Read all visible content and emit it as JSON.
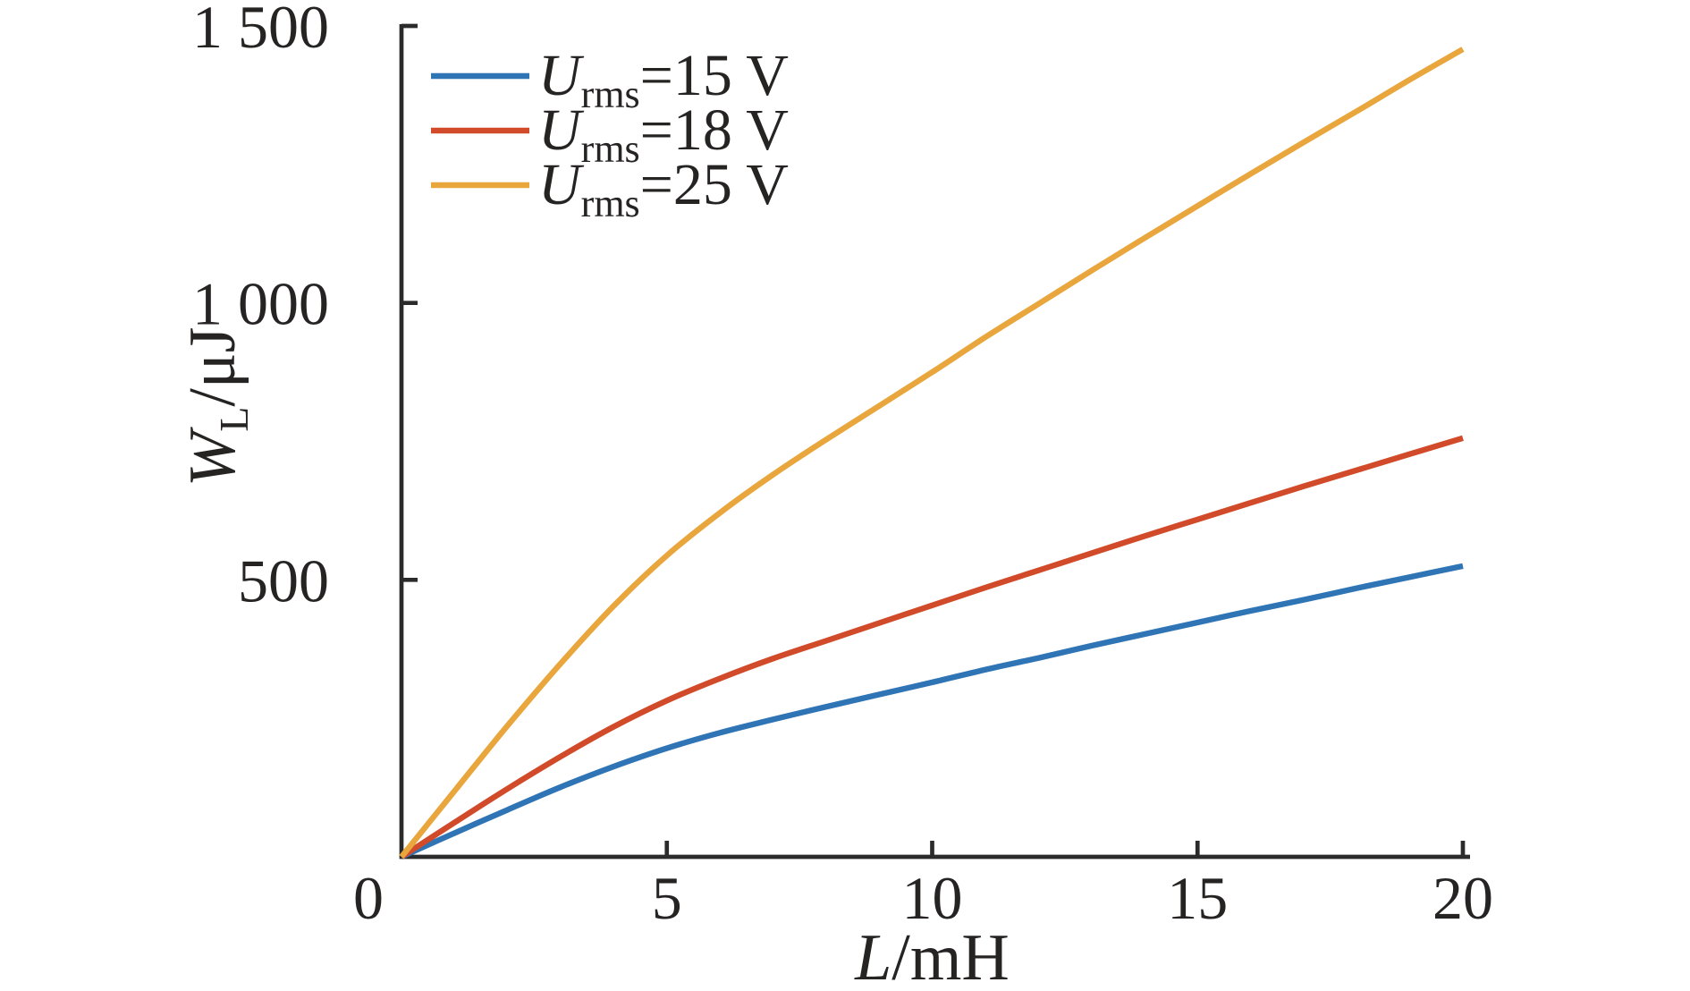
{
  "chart_data": {
    "type": "line",
    "title": "",
    "xlabel": {
      "var": "L",
      "rest": "/mH"
    },
    "ylabel": {
      "var": "W",
      "sub": "L",
      "rest": "/μJ"
    },
    "xlim": [
      0,
      20
    ],
    "ylim": [
      0,
      1500
    ],
    "x_ticks": [
      {
        "v": 0,
        "label": "0"
      },
      {
        "v": 5,
        "label": "5"
      },
      {
        "v": 10,
        "label": "10"
      },
      {
        "v": 15,
        "label": "15"
      },
      {
        "v": 20,
        "label": "20"
      }
    ],
    "y_ticks": [
      {
        "v": 500,
        "label": "500"
      },
      {
        "v": 1000,
        "label": "1 000"
      },
      {
        "v": 1500,
        "label": "1 500"
      }
    ],
    "grid": false,
    "legend_position": "inside-top-left",
    "x": [
      0,
      1,
      2,
      3,
      4,
      5,
      6,
      7,
      8,
      9,
      10,
      11,
      12,
      13,
      14,
      15,
      16,
      17,
      18,
      19,
      20
    ],
    "series": [
      {
        "name_var": "U",
        "name_sub": "rms",
        "name_rest": "=15 V",
        "color": "#2f74b5",
        "values": [
          0,
          43,
          85,
          126,
          163,
          196,
          224,
          248,
          271,
          293,
          315,
          338,
          359,
          381,
          402,
          423,
          444,
          464,
          485,
          505,
          525
        ]
      },
      {
        "name_var": "U",
        "name_sub": "rms",
        "name_rest": "=18 V",
        "color": "#d14b2a",
        "values": [
          0,
          62,
          123,
          181,
          235,
          282,
          322,
          358,
          390,
          422,
          454,
          486,
          517,
          548,
          579,
          609,
          639,
          669,
          698,
          727,
          756
        ]
      },
      {
        "name_var": "U",
        "name_sub": "rms",
        "name_rest": "=25 V",
        "color": "#e8a63d",
        "values": [
          0,
          119,
          237,
          349,
          453,
          544,
          621,
          690,
          753,
          814,
          875,
          938,
          998,
          1058,
          1117,
          1175,
          1233,
          1290,
          1346,
          1403,
          1458
        ]
      }
    ],
    "axis_color": "#2b2b2b",
    "text_color": "#262323"
  }
}
